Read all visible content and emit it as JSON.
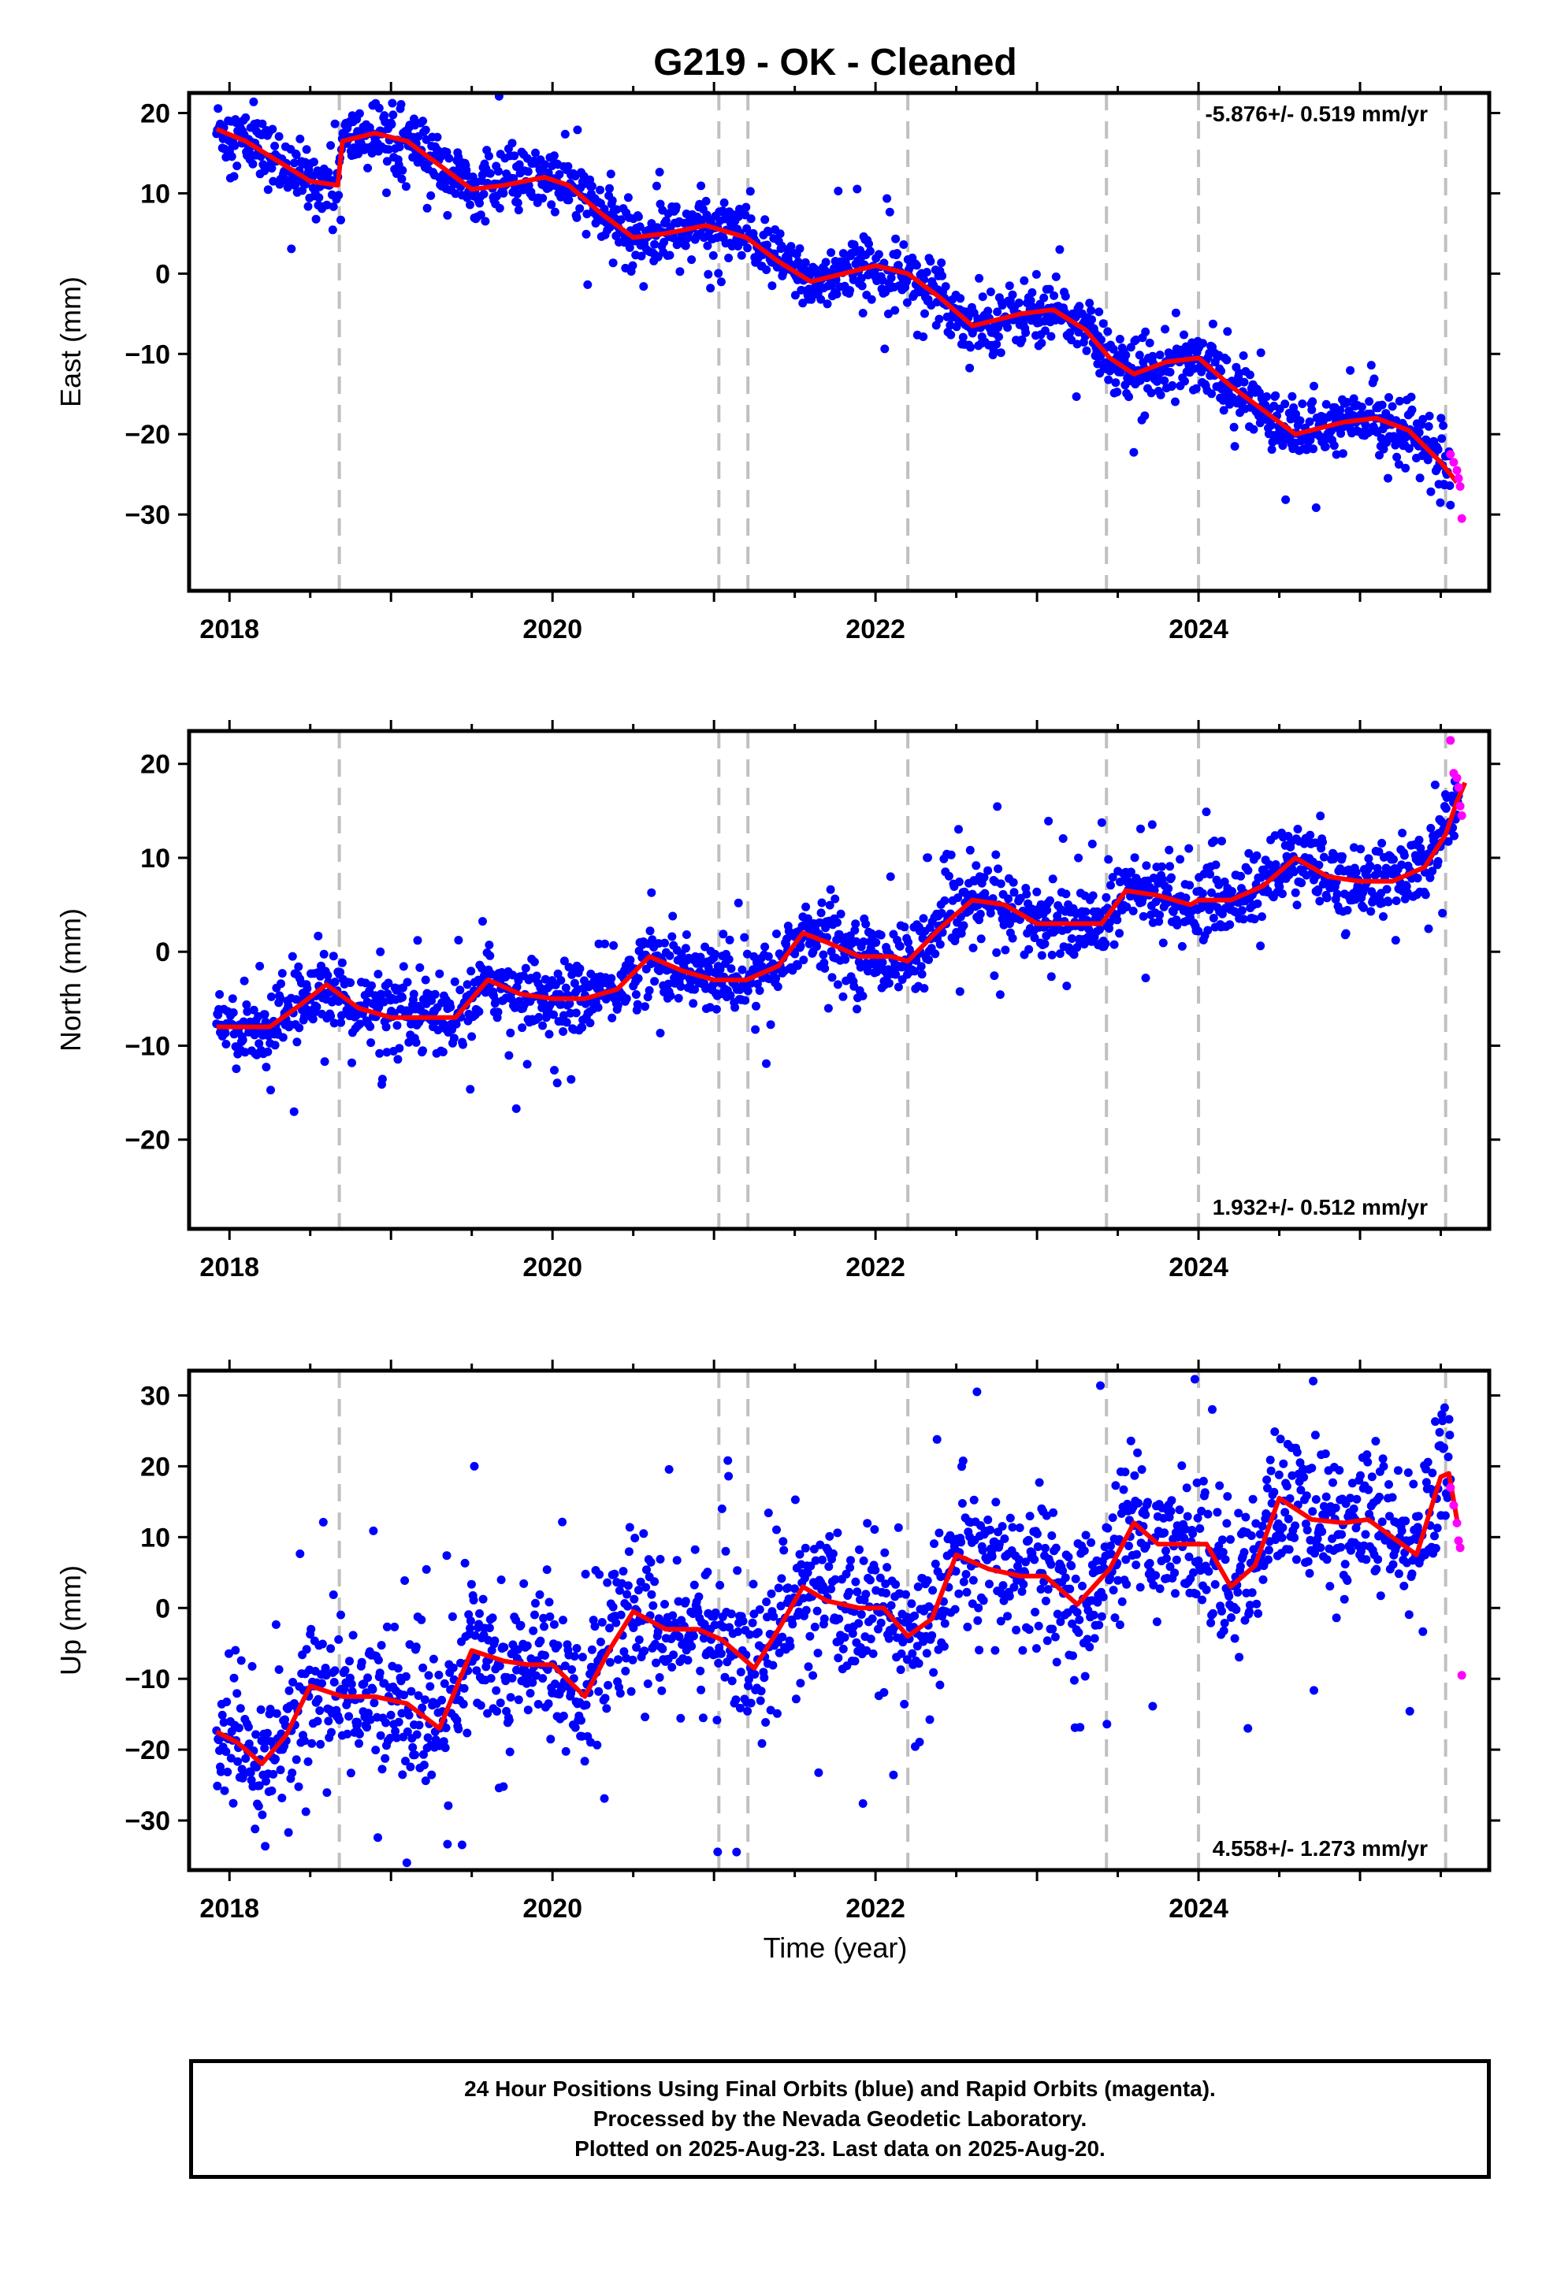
{
  "title": "G219  - OK - Cleaned",
  "xlabel": "Time (year)",
  "colors": {
    "final": "#0000ff",
    "rapid": "#ff00ff",
    "model": "#ff0000",
    "steps": "#c0c0c0"
  },
  "footer": {
    "line1": "24 Hour Positions Using Final Orbits (blue) and Rapid Orbits (magenta).",
    "line2": "Processed by the Nevada Geodetic Laboratory.",
    "line3": "Plotted on 2025-Aug-23. Last data on 2025-Aug-20."
  },
  "chart_data": [
    {
      "type": "scatter",
      "panel": "east",
      "ylabel": "East (mm)",
      "rate_label": "-5.876+/- 0.519 mm/yr",
      "xlim": [
        2017.75,
        2025.8
      ],
      "ylim": [
        -39.5,
        22.5
      ],
      "xticks": [
        2018,
        2020,
        2022,
        2024
      ],
      "yticks": [
        20,
        10,
        0,
        -10,
        -20,
        -30
      ],
      "step_epochs": [
        2018.68,
        2021.03,
        2021.21,
        2022.2,
        2023.43,
        2024.0,
        2025.53
      ],
      "model": {
        "x": [
          2017.92,
          2018.1,
          2018.3,
          2018.5,
          2018.67,
          2018.7,
          2018.9,
          2019.1,
          2019.3,
          2019.5,
          2019.7,
          2019.95,
          2020.1,
          2020.3,
          2020.5,
          2020.7,
          2020.95,
          2021.2,
          2021.4,
          2021.6,
          2021.8,
          2022.0,
          2022.2,
          2022.4,
          2022.6,
          2022.9,
          2023.1,
          2023.3,
          2023.45,
          2023.6,
          2023.8,
          2024.0,
          2024.2,
          2024.4,
          2024.6,
          2024.9,
          2025.1,
          2025.3,
          2025.5,
          2025.6
        ],
        "y": [
          18,
          16.5,
          14,
          11.5,
          11,
          16.5,
          17.5,
          16.5,
          13.5,
          10.5,
          11,
          12,
          11,
          7.5,
          4.5,
          5,
          6,
          4.5,
          1.5,
          -1,
          0,
          1,
          0,
          -3,
          -6.5,
          -5,
          -4.5,
          -7,
          -10.5,
          -12.5,
          -11,
          -10.5,
          -14,
          -17,
          -20,
          -18.5,
          -18,
          -19.5,
          -23.5,
          -26
        ]
      },
      "rapid": {
        "x": [
          2025.56,
          2025.58,
          2025.6,
          2025.61,
          2025.62,
          2025.63
        ],
        "y": [
          -22.5,
          -23.5,
          -24.5,
          -25.5,
          -26.5,
          -30.5
        ]
      }
    },
    {
      "type": "scatter",
      "panel": "north",
      "ylabel": "North (mm)",
      "rate_label": "1.932+/- 0.512 mm/yr",
      "xlim": [
        2017.75,
        2025.8
      ],
      "ylim": [
        -29.5,
        23.5
      ],
      "xticks": [
        2018,
        2020,
        2022,
        2024
      ],
      "yticks": [
        20,
        10,
        0,
        -10,
        -20
      ],
      "step_epochs": [
        2018.68,
        2021.03,
        2021.21,
        2022.2,
        2023.43,
        2024.0,
        2025.53
      ],
      "model": {
        "x": [
          2017.92,
          2018.05,
          2018.25,
          2018.45,
          2018.6,
          2018.8,
          2019.0,
          2019.2,
          2019.4,
          2019.6,
          2019.8,
          2020.0,
          2020.2,
          2020.4,
          2020.6,
          2020.8,
          2021.0,
          2021.2,
          2021.4,
          2021.55,
          2021.7,
          2021.9,
          2022.1,
          2022.2,
          2022.4,
          2022.6,
          2022.8,
          2023.0,
          2023.2,
          2023.4,
          2023.55,
          2023.75,
          2023.95,
          2024.0,
          2024.2,
          2024.4,
          2024.6,
          2024.8,
          2025.0,
          2025.2,
          2025.4,
          2025.53,
          2025.6,
          2025.65
        ],
        "y": [
          -8,
          -8,
          -8,
          -5.5,
          -3.5,
          -6,
          -7,
          -7,
          -7,
          -3,
          -4.5,
          -5,
          -5,
          -4,
          -0.5,
          -2,
          -3,
          -3,
          -1.5,
          2,
          1,
          -0.5,
          -0.5,
          -1,
          2.5,
          5.5,
          5,
          3,
          3,
          3,
          6.5,
          6,
          5,
          5.5,
          5.5,
          7,
          10,
          8,
          7.5,
          7.5,
          9,
          12.5,
          16,
          18
        ]
      },
      "rapid": {
        "x": [
          2025.56,
          2025.58,
          2025.6,
          2025.61,
          2025.62,
          2025.63
        ],
        "y": [
          22.5,
          19,
          18.5,
          17.5,
          15.5,
          14.5
        ]
      }
    },
    {
      "type": "scatter",
      "panel": "up",
      "ylabel": "Up (mm)",
      "rate_label": "4.558+/- 1.273 mm/yr",
      "xlim": [
        2017.75,
        2025.8
      ],
      "ylim": [
        -37,
        33.5
      ],
      "xticks": [
        2018,
        2020,
        2022,
        2024
      ],
      "yticks": [
        30,
        20,
        10,
        0,
        -10,
        -20,
        -30
      ],
      "step_epochs": [
        2018.68,
        2021.03,
        2021.21,
        2022.2,
        2023.43,
        2024.0,
        2025.53
      ],
      "model": {
        "x": [
          2017.92,
          2018.05,
          2018.2,
          2018.35,
          2018.5,
          2018.7,
          2018.9,
          2019.1,
          2019.3,
          2019.5,
          2019.7,
          2019.85,
          2020.0,
          2020.2,
          2020.35,
          2020.5,
          2020.7,
          2020.9,
          2021.05,
          2021.25,
          2021.4,
          2021.55,
          2021.7,
          2021.9,
          2022.05,
          2022.2,
          2022.35,
          2022.5,
          2022.7,
          2022.9,
          2023.05,
          2023.25,
          2023.45,
          2023.6,
          2023.75,
          2023.9,
          2024.05,
          2024.2,
          2024.35,
          2024.5,
          2024.7,
          2024.9,
          2025.05,
          2025.2,
          2025.35,
          2025.5,
          2025.55,
          2025.6
        ],
        "y": [
          -17.5,
          -19,
          -22,
          -18,
          -11,
          -12.5,
          -12.5,
          -13.5,
          -17,
          -6,
          -7.5,
          -8,
          -8,
          -12.5,
          -6,
          -0.5,
          -3,
          -3,
          -4.5,
          -8.5,
          -3,
          3,
          1,
          0,
          0,
          -4,
          -1.5,
          7.5,
          5.5,
          4.5,
          4.5,
          0.5,
          5.5,
          12,
          9,
          9,
          9,
          3,
          6,
          15.5,
          12.5,
          12,
          12.5,
          10,
          7.5,
          18.5,
          19,
          12.5
        ]
      },
      "rapid": {
        "x": [
          2025.56,
          2025.58,
          2025.6,
          2025.61,
          2025.62,
          2025.63
        ],
        "y": [
          17,
          14.5,
          12,
          9.5,
          8.5,
          -9.5
        ]
      }
    }
  ]
}
